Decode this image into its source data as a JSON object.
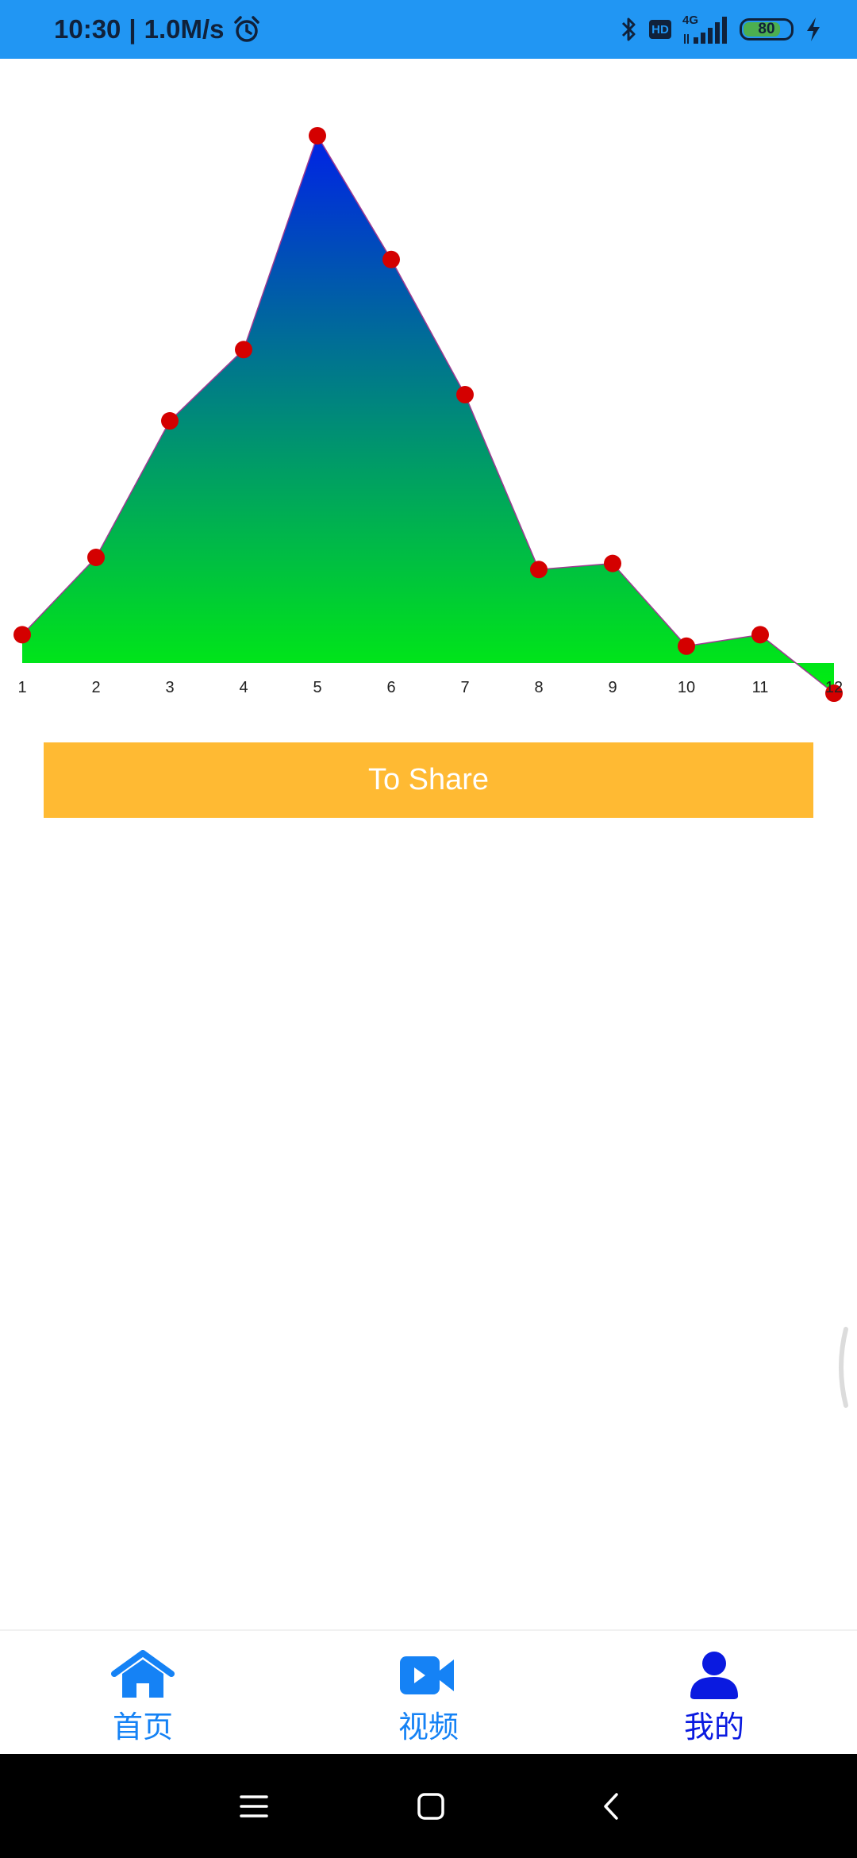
{
  "status_bar": {
    "time": "10:30",
    "separator": "|",
    "speed": "1.0M/s",
    "hd_label": "HD",
    "network_label": "4G",
    "battery_level": "80",
    "background_color": "#2196F3",
    "icons": [
      "alarm-icon",
      "bluetooth-icon",
      "hd-icon",
      "signal-icon",
      "battery-icon",
      "charging-icon"
    ]
  },
  "chart_data": {
    "type": "area",
    "categories": [
      "1",
      "2",
      "3",
      "4",
      "5",
      "6",
      "7",
      "8",
      "9",
      "10",
      "11",
      "12"
    ],
    "values": [
      42,
      157,
      360,
      466,
      784,
      600,
      399,
      139,
      148,
      25,
      42,
      -45
    ],
    "ylim": [
      -65,
      830
    ],
    "grid": false,
    "legend": "none",
    "baseline": 0,
    "title": "",
    "xlabel": "",
    "ylabel": "",
    "gradient_top_color": "#0022E6",
    "gradient_bottom_color": "#00F00E",
    "marker_color": "#D40000",
    "line_color": "#9E3A92"
  },
  "share_button": {
    "label": "To Share",
    "color": "#FFBA33"
  },
  "bottom_nav": {
    "items": [
      {
        "label": "首页",
        "icon": "home-icon",
        "color": "#1582F5"
      },
      {
        "label": "视频",
        "icon": "video-camera-icon",
        "color": "#1582F5"
      },
      {
        "label": "我的",
        "icon": "person-icon",
        "color": "#0A1AE0"
      }
    ],
    "selected": "我的"
  },
  "system_nav": {
    "icons": [
      "menu-icon",
      "home-square-icon",
      "back-chevron-icon"
    ]
  }
}
